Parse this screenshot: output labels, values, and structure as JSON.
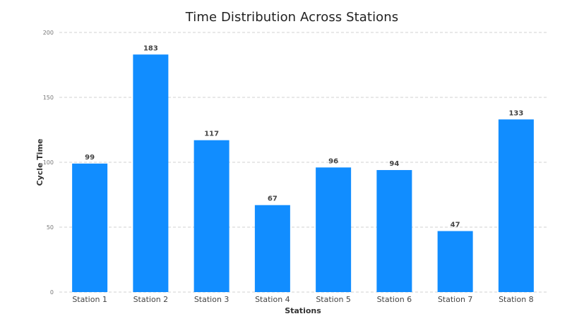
{
  "chart_data": {
    "type": "bar",
    "title": "Time Distribution Across Stations",
    "xlabel": "Stations",
    "ylabel": "Cycle Time",
    "categories": [
      "Station 1",
      "Station 2",
      "Station 3",
      "Station 4",
      "Station 5",
      "Station 6",
      "Station 7",
      "Station 8"
    ],
    "values": [
      99,
      183,
      117,
      67,
      96,
      94,
      47,
      133
    ],
    "ylim": [
      0,
      200
    ],
    "yticks": [
      0,
      50,
      100,
      150,
      200
    ],
    "grid": true,
    "legend": "none",
    "bar_color": "#118DFF",
    "data_labels": true
  }
}
